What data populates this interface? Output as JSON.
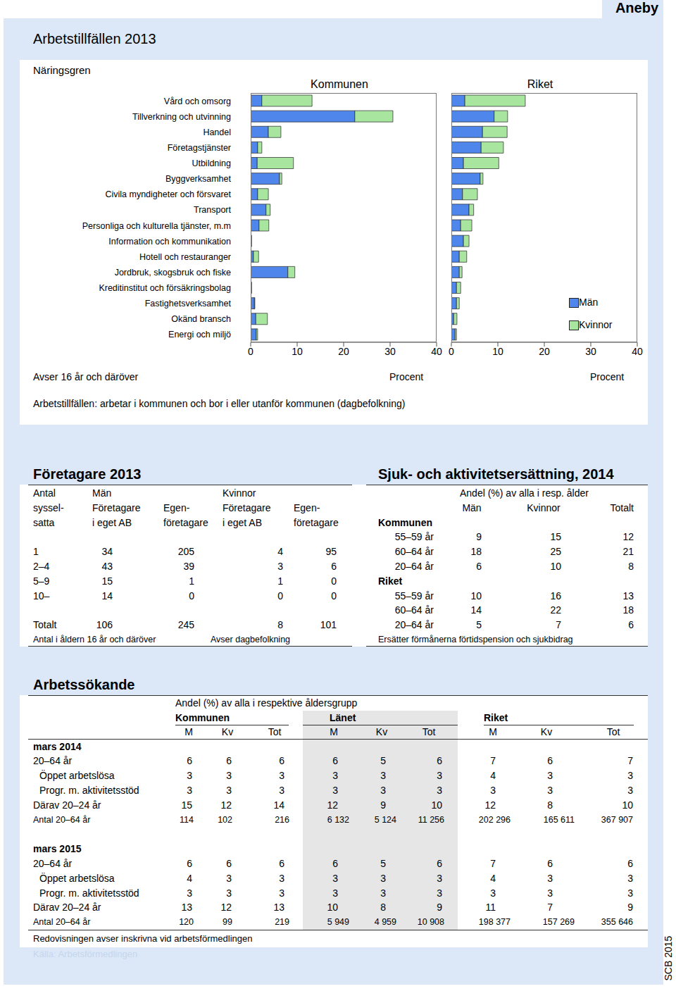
{
  "page": {
    "municipality": "Aneby",
    "footer": "SCB 2015"
  },
  "arbetstillfallen": {
    "title": "Arbetstillfällen 2013",
    "notes": [
      "Avser 16 år och däröver",
      "Arbetstillfällen: arbetar i kommunen och bor i eller utanför kommunen (dagbefolkning)"
    ]
  },
  "chart_data": [
    {
      "type": "bar",
      "orientation": "horizontal",
      "stacked": true,
      "title": "Kommunen",
      "y_label": "Näringsgren",
      "x_label": "Procent",
      "categories": [
        "Vård och omsorg",
        "Tillverkning och utvinning",
        "Handel",
        "Företagstjänster",
        "Utbildning",
        "Byggverksamhet",
        "Civila myndigheter och försvaret",
        "Transport",
        "Personliga och kulturella tjänster, m.m",
        "Information och kommunikation",
        "Hotell och restauranger",
        "Jordbruk, skogsbruk och fiske",
        "Kreditinstitut och försäkringsbolag",
        "Fastighetsverksamhet",
        "Okänd bransch",
        "Energi och miljö"
      ],
      "series": [
        {
          "name": "Män",
          "color": "#4f86ec",
          "values": [
            2.4,
            22.4,
            3.8,
            1.5,
            1.4,
            6.2,
            1.5,
            3.3,
            1.8,
            0.2,
            0.6,
            8.0,
            0.1,
            0.8,
            1.1,
            1.2
          ]
        },
        {
          "name": "Kvinnor",
          "color": "#a8e6a0",
          "values": [
            10.8,
            8.2,
            2.7,
            0.9,
            7.8,
            0.5,
            2.3,
            0.9,
            2.1,
            0,
            1.1,
            1.5,
            0.1,
            0.1,
            2.5,
            0.3
          ]
        }
      ],
      "xlim": [
        0,
        40
      ],
      "xticks": [
        0,
        10,
        20,
        30,
        40
      ]
    },
    {
      "type": "bar",
      "orientation": "horizontal",
      "stacked": true,
      "title": "Riket",
      "x_label": "Procent",
      "tick_labels": "x",
      "legend": "lower right",
      "categories": [
        "Vård och omsorg",
        "Tillverkning och utvinning",
        "Handel",
        "Företagstjänster",
        "Utbildning",
        "Byggverksamhet",
        "Civila myndigheter och försvaret",
        "Transport",
        "Personliga och kulturella tjänster, m.m",
        "Information och kommunikation",
        "Hotell och restauranger",
        "Jordbruk, skogsbruk och fiske",
        "Kreditinstitut och försäkringsbolag",
        "Fastighetsverksamhet",
        "Okänd bransch",
        "Energi och miljö"
      ],
      "series": [
        {
          "name": "Män",
          "color": "#4f86ec",
          "values": [
            2.9,
            9.2,
            6.7,
            6.4,
            2.6,
            6.2,
            2.4,
            3.8,
            2.0,
            2.6,
            1.7,
            1.7,
            1.1,
            1.1,
            0.5,
            0.8
          ]
        },
        {
          "name": "Kvinnor",
          "color": "#a8e6a0",
          "values": [
            13.0,
            2.9,
            5.3,
            4.8,
            7.6,
            0.6,
            3.2,
            1.0,
            2.4,
            1.2,
            1.6,
            0.6,
            0.9,
            0.6,
            0.7,
            0.3
          ]
        }
      ],
      "xlim": [
        0,
        40
      ],
      "xticks": [
        0,
        10,
        20,
        30,
        40
      ]
    }
  ],
  "foretagare": {
    "title": "Företagare 2013",
    "stub_header": [
      "Antal",
      "syssel-",
      "satta"
    ],
    "groups": [
      "Män",
      "Kvinnor"
    ],
    "columns": [
      [
        "Företagare",
        "i eget AB"
      ],
      [
        "Egen-",
        "företagare"
      ],
      [
        "Företagare",
        "i eget AB"
      ],
      [
        "Egen-",
        "företagare"
      ]
    ],
    "rows": [
      {
        "label": "1",
        "values": [
          34,
          205,
          4,
          95
        ]
      },
      {
        "label": "2–4",
        "values": [
          43,
          39,
          3,
          6
        ]
      },
      {
        "label": "5–9",
        "values": [
          15,
          1,
          1,
          0
        ]
      },
      {
        "label": "10–",
        "values": [
          14,
          0,
          0,
          0
        ]
      },
      {
        "label": "Totalt",
        "values": [
          106,
          245,
          8,
          101
        ]
      }
    ],
    "notes": [
      "Antal i åldern 16 år och däröver",
      "Avser dagbefolkning"
    ]
  },
  "sjuk": {
    "title": "Sjuk- och aktivitetsersättning, 2014",
    "subtitle": "Andel (%) av alla i resp. ålder",
    "columns": [
      "Män",
      "Kvinnor",
      "Totalt"
    ],
    "groups": [
      {
        "name": "Kommunen",
        "rows": [
          {
            "label": "55–59 år",
            "values": [
              9,
              15,
              12
            ]
          },
          {
            "label": "60–64 år",
            "values": [
              18,
              25,
              21
            ]
          },
          {
            "label": "20–64 år",
            "values": [
              6,
              10,
              8
            ]
          }
        ]
      },
      {
        "name": "Riket",
        "rows": [
          {
            "label": "55–59 år",
            "values": [
              10,
              16,
              13
            ]
          },
          {
            "label": "60–64 år",
            "values": [
              14,
              22,
              18
            ]
          },
          {
            "label": "20–64 år",
            "values": [
              5,
              7,
              6
            ]
          }
        ]
      }
    ],
    "note": "Ersätter förmånerna förtidspension och sjukbidrag"
  },
  "arbetssokande": {
    "title": "Arbetssökande",
    "subtitle": "Andel (%) av alla i respektive åldersgrupp",
    "groups": [
      "Kommunen",
      "Länet",
      "Riket"
    ],
    "columns": [
      "M",
      "Kv",
      "Tot"
    ],
    "sections": [
      {
        "name": "mars 2014",
        "rows": [
          {
            "label": "20–64 år",
            "values": [
              6,
              6,
              6,
              6,
              5,
              6,
              7,
              6,
              7
            ]
          },
          {
            "label": "Öppet arbetslösa",
            "values": [
              3,
              3,
              3,
              3,
              3,
              3,
              4,
              3,
              3
            ]
          },
          {
            "label": "Progr. m. aktivitetsstöd",
            "values": [
              3,
              3,
              3,
              3,
              3,
              3,
              3,
              3,
              3
            ]
          },
          {
            "label": "Därav 20–24 år",
            "values": [
              15,
              12,
              14,
              12,
              9,
              10,
              12,
              8,
              10
            ]
          },
          {
            "label": "Antal 20–64 år",
            "values": [
              114,
              102,
              216,
              {
                "value": 6132,
                "label": "6 132"
              },
              {
                "value": 5124,
                "label": "5 124"
              },
              {
                "value": 11256,
                "label": "11 256"
              },
              {
                "value": 202296,
                "label": "202 296"
              },
              {
                "value": 165611,
                "label": "165 611"
              },
              {
                "value": 367907,
                "label": "367 907"
              }
            ]
          }
        ]
      },
      {
        "name": "mars 2015",
        "rows": [
          {
            "label": "20–64 år",
            "values": [
              6,
              6,
              6,
              6,
              5,
              6,
              7,
              6,
              6
            ]
          },
          {
            "label": "Öppet arbetslösa",
            "values": [
              4,
              3,
              3,
              3,
              3,
              3,
              4,
              3,
              3
            ]
          },
          {
            "label": "Progr. m. aktivitetsstöd",
            "values": [
              3,
              3,
              3,
              3,
              3,
              3,
              3,
              3,
              3
            ]
          },
          {
            "label": "Därav 20–24 år",
            "values": [
              13,
              12,
              13,
              10,
              8,
              9,
              11,
              7,
              9
            ]
          },
          {
            "label": "Antal 20–64 år",
            "values": [
              120,
              99,
              219,
              {
                "value": 5949,
                "label": "5 949"
              },
              {
                "value": 4959,
                "label": "4 959"
              },
              {
                "value": 10908,
                "label": "10 908"
              },
              {
                "value": 198377,
                "label": "198 377"
              },
              {
                "value": 157269,
                "label": "157 269"
              },
              {
                "value": 355646,
                "label": "355 646"
              }
            ]
          }
        ]
      }
    ],
    "note": "Redovisningen avser inskrivna vid arbetsförmedlingen",
    "source": "Källa: Arbetsförmedlingen"
  }
}
